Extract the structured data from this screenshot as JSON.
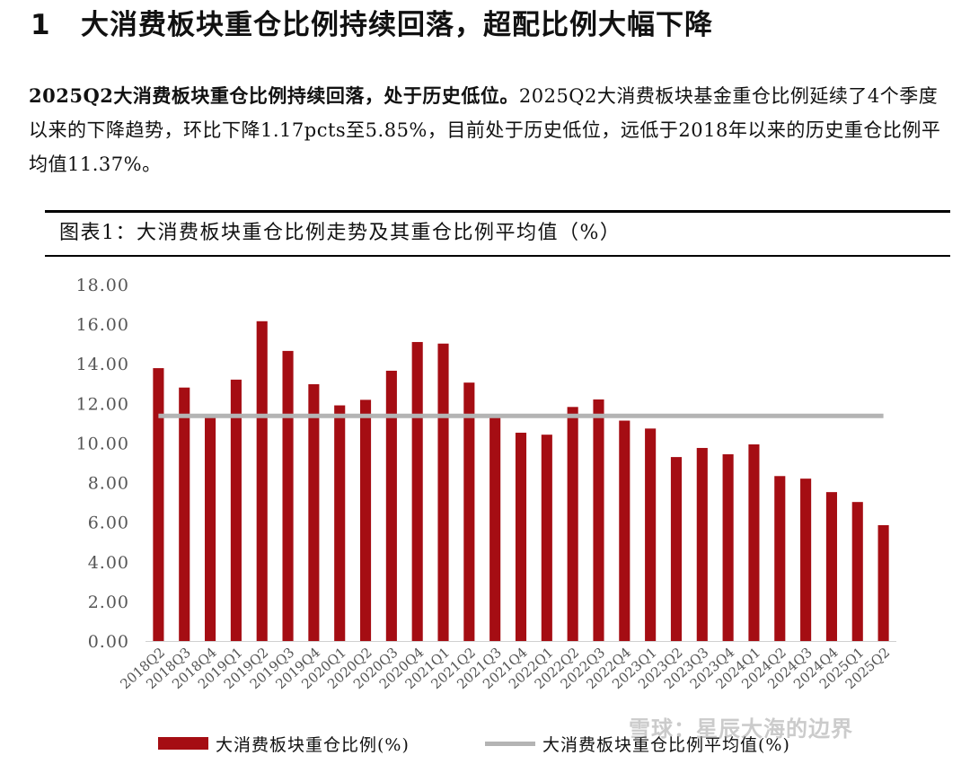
{
  "section": {
    "number": "1",
    "title": "大消费板块重仓比例持续回落，超配比例大幅下降"
  },
  "intro": {
    "lead": "2025Q2大消费板块重仓比例持续回落，处于历史低位。",
    "text": "2025Q2大消费板块基金重仓比例延续了4个季度以来的下降趋势，环比下降1.17pcts至5.85%，目前处于历史低位，远低于2018年以来的历史重仓比例平均值11.37%。"
  },
  "figure": {
    "title": "图表1：大消费板块重仓比例走势及其重仓比例平均值（%）"
  },
  "colors": {
    "bar": "#a50d13",
    "avg_line": "#b4b4b4",
    "axis": "#d0d0d0",
    "tick_text": "#555555"
  },
  "chart_data": {
    "type": "bar",
    "categories": [
      "2018Q2",
      "2018Q3",
      "2018Q4",
      "2019Q1",
      "2019Q2",
      "2019Q3",
      "2019Q4",
      "2020Q1",
      "2020Q2",
      "2020Q3",
      "2020Q4",
      "2021Q1",
      "2021Q2",
      "2021Q3",
      "2021Q4",
      "2022Q1",
      "2022Q2",
      "2022Q3",
      "2022Q4",
      "2023Q1",
      "2023Q2",
      "2023Q3",
      "2023Q4",
      "2024Q1",
      "2024Q2",
      "2024Q3",
      "2024Q4",
      "2025Q1",
      "2025Q2"
    ],
    "series": [
      {
        "name": "大消费板块重仓比例(%)",
        "type": "bar",
        "values": [
          13.78,
          12.8,
          11.3,
          13.2,
          16.15,
          14.65,
          12.97,
          11.9,
          12.18,
          13.65,
          15.1,
          15.02,
          13.05,
          11.27,
          10.52,
          10.42,
          11.82,
          12.2,
          11.13,
          10.73,
          9.29,
          9.75,
          9.43,
          9.93,
          8.33,
          8.2,
          7.52,
          7.02,
          5.85
        ]
      },
      {
        "name": "大消费板块重仓比例平均值(%)",
        "type": "line",
        "values": [
          11.37,
          11.37,
          11.37,
          11.37,
          11.37,
          11.37,
          11.37,
          11.37,
          11.37,
          11.37,
          11.37,
          11.37,
          11.37,
          11.37,
          11.37,
          11.37,
          11.37,
          11.37,
          11.37,
          11.37,
          11.37,
          11.37,
          11.37,
          11.37,
          11.37,
          11.37,
          11.37,
          11.37,
          11.37
        ]
      }
    ],
    "y_ticks": [
      "0.00",
      "2.00",
      "4.00",
      "6.00",
      "8.00",
      "10.00",
      "12.00",
      "14.00",
      "16.00",
      "18.00"
    ],
    "ylim": [
      0,
      18
    ],
    "grid": false,
    "legend_position": "bottom"
  },
  "watermark": "雪球：星辰大海的边界"
}
